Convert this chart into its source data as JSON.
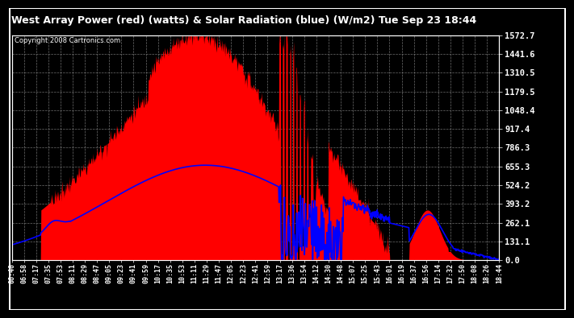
{
  "title": "West Array Power (red) (watts) & Solar Radiation (blue) (W/m2) Tue Sep 23 18:44",
  "copyright": "Copyright 2008 Cartronics.com",
  "bg_color": "#000000",
  "plot_bg_color": "#000000",
  "grid_color": "#aaaaaa",
  "red_color": "#ff0000",
  "blue_color": "#0000ff",
  "y_ticks": [
    0.0,
    131.1,
    262.1,
    393.2,
    524.2,
    655.3,
    786.3,
    917.4,
    1048.4,
    1179.5,
    1310.5,
    1441.6,
    1572.7
  ],
  "y_max": 1572.7,
  "x_labels": [
    "06:40",
    "06:58",
    "07:17",
    "07:35",
    "07:53",
    "08:11",
    "08:29",
    "08:47",
    "09:05",
    "09:23",
    "09:41",
    "09:59",
    "10:17",
    "10:35",
    "10:53",
    "11:11",
    "11:29",
    "11:47",
    "12:05",
    "12:23",
    "12:41",
    "12:59",
    "13:17",
    "13:36",
    "13:54",
    "14:12",
    "14:30",
    "14:48",
    "15:07",
    "15:25",
    "15:43",
    "16:01",
    "16:19",
    "16:37",
    "16:56",
    "17:14",
    "17:32",
    "17:50",
    "18:08",
    "18:26",
    "18:44"
  ],
  "n_points": 1000
}
